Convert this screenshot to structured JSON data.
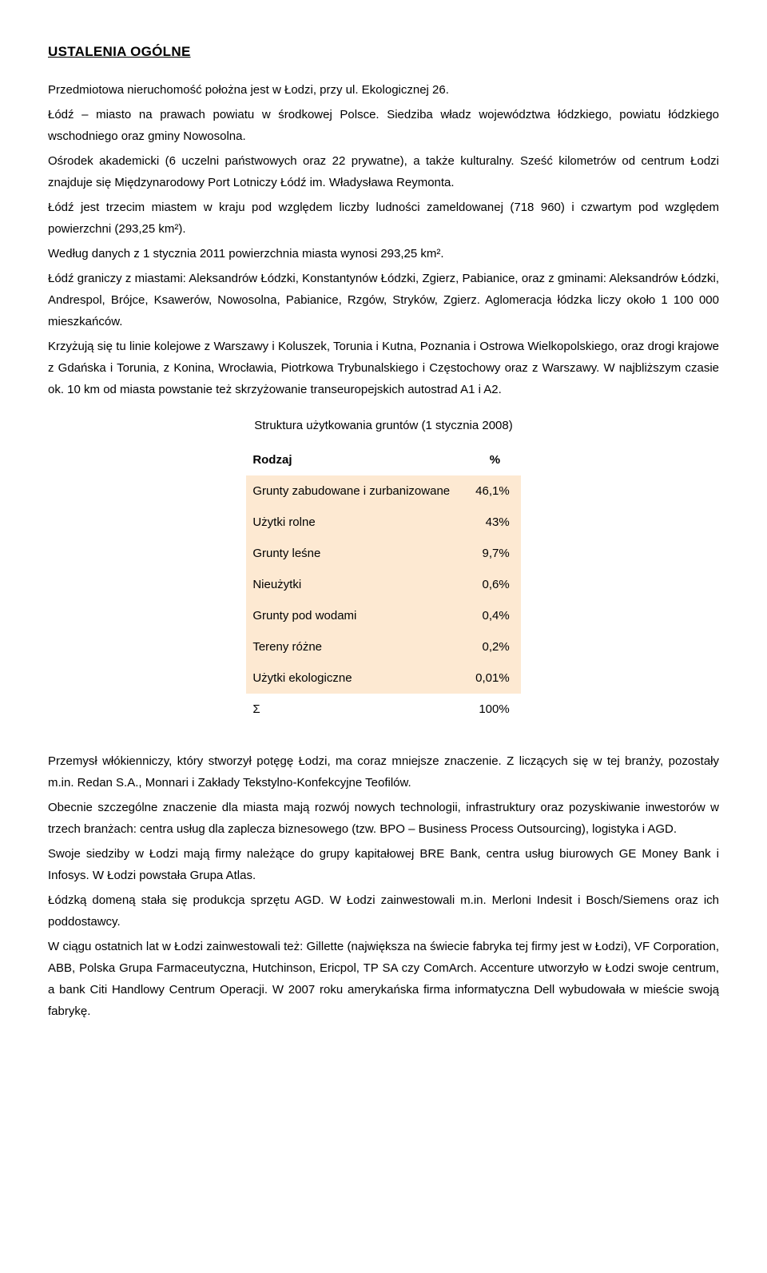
{
  "heading": "USTALENIA OGÓLNE",
  "para1": "Przedmiotowa nieruchomość położna jest w Łodzi, przy ul. Ekologicznej 26.",
  "para2": "Łódź – miasto na prawach powiatu w środkowej Polsce. Siedziba władz województwa łódzkiego, powiatu łódzkiego wschodniego oraz gminy Nowosolna.",
  "para3": "Ośrodek akademicki (6 uczelni państwowych oraz 22 prywatne), a także kulturalny. Sześć kilometrów od centrum Łodzi znajduje się Międzynarodowy Port Lotniczy Łódź im. Władysława Reymonta.",
  "para4": "Łódź jest trzecim miastem w kraju pod względem liczby ludności zameldowanej (718 960) i czwartym pod względem powierzchni (293,25 km²).",
  "para5": "Według danych z 1 stycznia 2011 powierzchnia miasta wynosi 293,25 km².",
  "para6": "Łódź graniczy z miastami: Aleksandrów Łódzki, Konstantynów Łódzki, Zgierz, Pabianice, oraz z gminami: Aleksandrów Łódzki, Andrespol, Brójce, Ksawerów, Nowosolna, Pabianice, Rzgów, Stryków, Zgierz. Aglomeracja łódzka liczy około 1 100 000 mieszkańców.",
  "para7": "Krzyżują się tu linie kolejowe z Warszawy i Koluszek, Torunia i Kutna, Poznania i Ostrowa Wielkopolskiego, oraz drogi krajowe z Gdańska i Torunia, z Konina, Wrocławia, Piotrkowa Trybunalskiego i Częstochowy oraz z Warszawy. W najbliższym czasie ok. 10 km od miasta powstanie też skrzyżowanie transeuropejskich autostrad A1 i A2.",
  "table_title": "Struktura użytkowania gruntów (1 stycznia 2008)",
  "table": {
    "columns": [
      "Rodzaj",
      "%"
    ],
    "rows": [
      {
        "label": "Grunty zabudowane i zurbanizowane",
        "value": "46,1%"
      },
      {
        "label": "Użytki rolne",
        "value": "43%"
      },
      {
        "label": "Grunty leśne",
        "value": "9,7%"
      },
      {
        "label": "Nieużytki",
        "value": "0,6%"
      },
      {
        "label": "Grunty pod wodami",
        "value": "0,4%"
      },
      {
        "label": "Tereny różne",
        "value": "0,2%"
      },
      {
        "label": "Użytki ekologiczne",
        "value": "0,01%"
      },
      {
        "label": "Σ",
        "value": "100%"
      }
    ],
    "row_bg_odd": "#fde9d2",
    "row_bg_even": "#ffffff",
    "font_size": 15
  },
  "para8": "Przemysł włókienniczy, który stworzył potęgę Łodzi, ma coraz mniejsze znaczenie. Z liczących się w tej branży, pozostały m.in. Redan S.A., Monnari i Zakłady Tekstylno-Konfekcyjne Teofilów.",
  "para9": "Obecnie szczególne znaczenie dla miasta mają rozwój nowych technologii, infrastruktury oraz pozyskiwanie inwestorów w trzech branżach: centra usług dla zaplecza biznesowego (tzw. BPO – Business Process Outsourcing), logistyka i AGD.",
  "para10": "Swoje siedziby w Łodzi mają firmy należące do grupy kapitałowej BRE Bank, centra usług biurowych GE Money Bank i Infosys. W Łodzi powstała Grupa Atlas.",
  "para11": "Łódzką domeną stała się produkcja sprzętu AGD. W Łodzi zainwestowali m.in. Merloni Indesit i Bosch/Siemens oraz ich poddostawcy.",
  "para12": "W ciągu ostatnich lat w Łodzi zainwestowali też: Gillette (największa na świecie fabryka tej firmy jest w Łodzi), VF Corporation, ABB, Polska Grupa Farmaceutyczna, Hutchinson, Ericpol, TP SA czy ComArch. Accenture utworzyło w Łodzi swoje centrum, a bank Citi Handlowy Centrum Operacji. W 2007 roku amerykańska firma informatyczna Dell wybudowała w mieście swoją fabrykę."
}
